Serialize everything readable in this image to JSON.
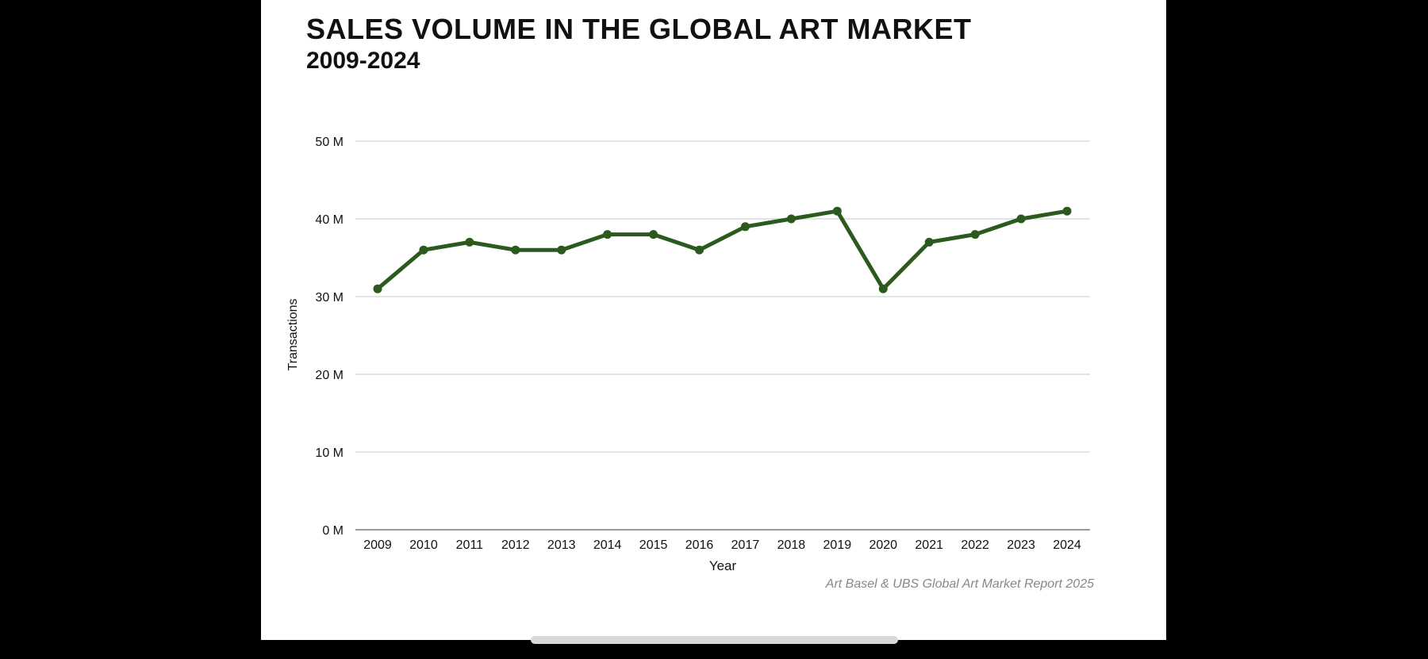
{
  "chart_data": {
    "type": "line",
    "title": "SALES VOLUME IN THE GLOBAL ART MARKET",
    "subtitle": "2009-2024",
    "xlabel": "Year",
    "ylabel": "Transactions",
    "source": "Art Basel & UBS Global Art Market Report 2025",
    "categories": [
      "2009",
      "2010",
      "2011",
      "2012",
      "2013",
      "2014",
      "2015",
      "2016",
      "2017",
      "2018",
      "2019",
      "2020",
      "2021",
      "2022",
      "2023",
      "2024"
    ],
    "values": [
      31,
      36,
      37,
      36,
      36,
      38,
      38,
      36,
      39,
      40,
      41,
      31,
      37,
      38,
      40,
      41
    ],
    "value_unit": "M",
    "yticks": [
      0,
      10,
      20,
      30,
      40,
      50
    ],
    "ytick_labels": [
      "0 M",
      "10 M",
      "20 M",
      "30 M",
      "40 M",
      "50 M"
    ],
    "ylim": [
      0,
      50
    ],
    "grid": true,
    "legend": "none",
    "line_color": "#2b5a1e",
    "grid_color": "#dcdcdc",
    "axis_color": "#9a9a9a"
  }
}
